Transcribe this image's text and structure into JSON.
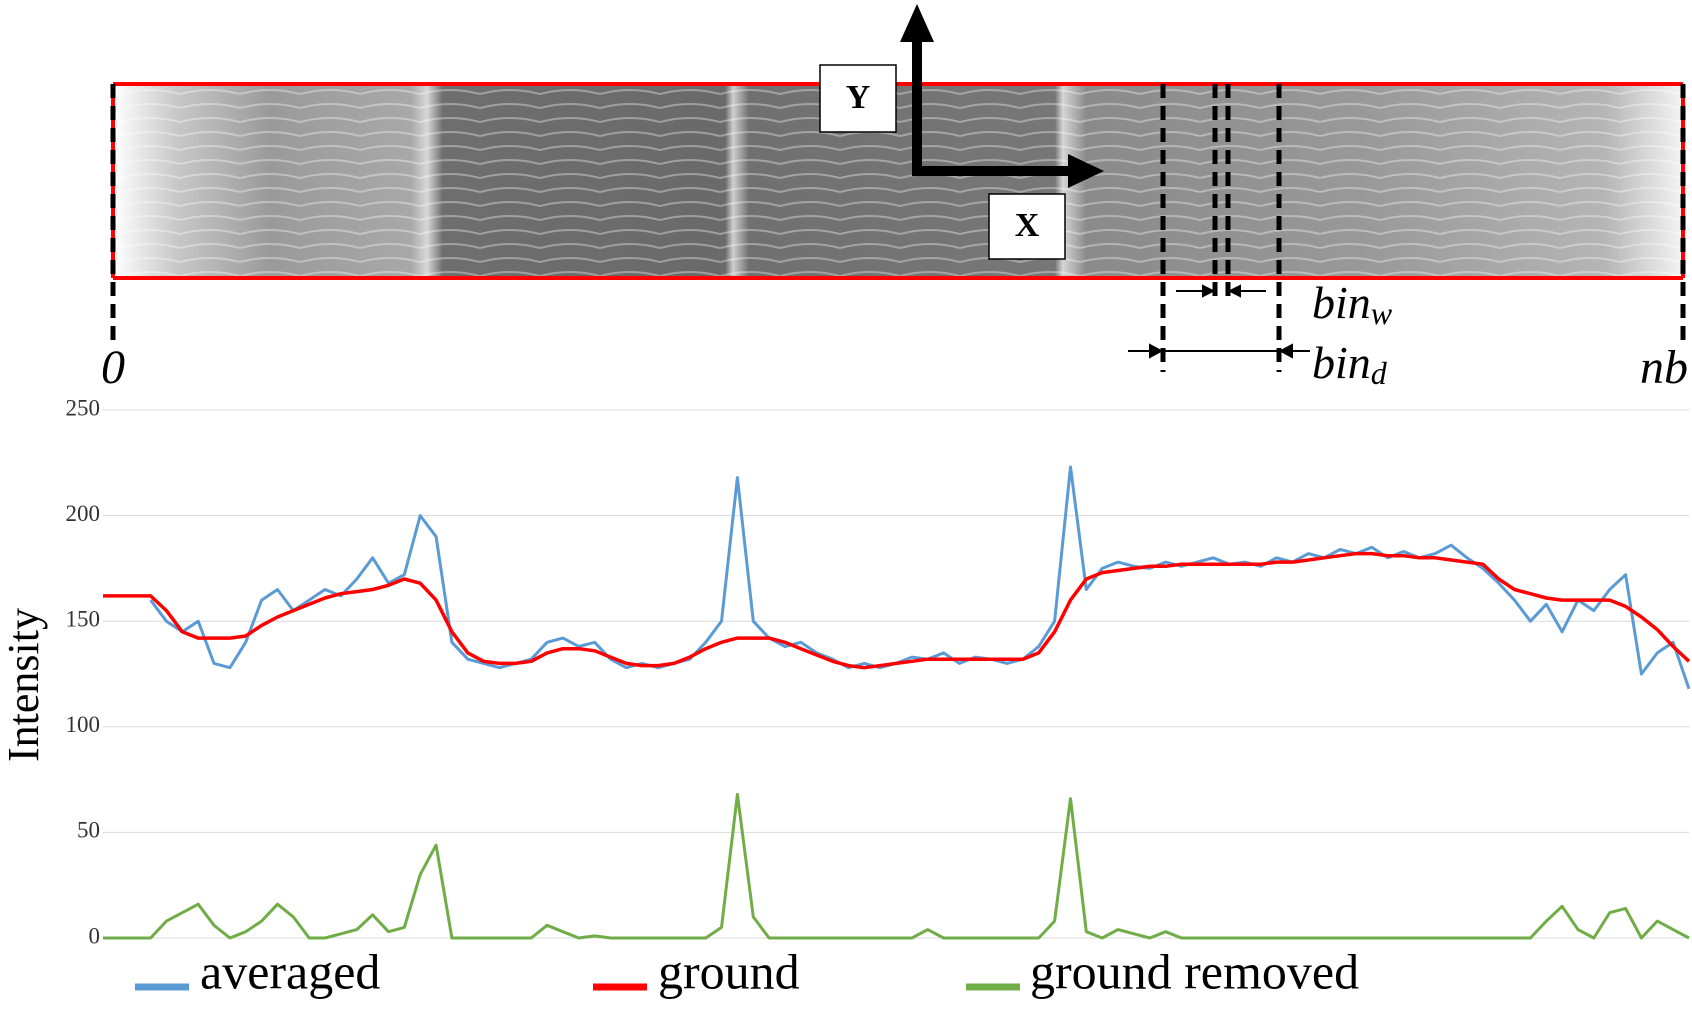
{
  "diagram": {
    "y_axis": "Y",
    "x_axis": "X",
    "start": "0",
    "end": "nb",
    "bin_w": {
      "base": "bin",
      "sub": "w"
    },
    "bin_d": {
      "base": "bin",
      "sub": "d"
    }
  },
  "chart_data": {
    "type": "line",
    "ylabel": "Intensity",
    "x": [
      0,
      1,
      2,
      3,
      4,
      5,
      6,
      7,
      8,
      9,
      10,
      11,
      12,
      13,
      14,
      15,
      16,
      17,
      18,
      19,
      20,
      21,
      22,
      23,
      24,
      25,
      26,
      27,
      28,
      29,
      30,
      31,
      32,
      33,
      34,
      35,
      36,
      37,
      38,
      39,
      40,
      41,
      42,
      43,
      44,
      45,
      46,
      47,
      48,
      49,
      50,
      51,
      52,
      53,
      54,
      55,
      56,
      57,
      58,
      59,
      60,
      61,
      62,
      63,
      64,
      65,
      66,
      67,
      68,
      69,
      70,
      71,
      72,
      73,
      74,
      75,
      76,
      77,
      78,
      79,
      80,
      81,
      82,
      83,
      84,
      85,
      86,
      87,
      88,
      89,
      90,
      91,
      92,
      93,
      94,
      95,
      96,
      97,
      98,
      99,
      100
    ],
    "xlim": [
      0,
      100
    ],
    "ylim": [
      0,
      250
    ],
    "yticks": [
      0,
      50,
      100,
      150,
      200,
      250
    ],
    "grid": true,
    "series": [
      {
        "name": "averaged",
        "color": "#5b9bd5",
        "values": [
          null,
          null,
          null,
          160,
          150,
          145,
          150,
          130,
          128,
          140,
          160,
          165,
          155,
          160,
          165,
          162,
          170,
          180,
          168,
          172,
          200,
          190,
          140,
          132,
          130,
          128,
          130,
          132,
          140,
          142,
          138,
          140,
          132,
          128,
          130,
          128,
          130,
          132,
          140,
          150,
          218,
          150,
          142,
          138,
          140,
          135,
          132,
          128,
          130,
          128,
          130,
          133,
          132,
          135,
          130,
          133,
          132,
          130,
          132,
          138,
          150,
          223,
          165,
          175,
          178,
          176,
          175,
          178,
          176,
          178,
          180,
          177,
          178,
          176,
          180,
          178,
          182,
          180,
          184,
          182,
          185,
          180,
          183,
          180,
          182,
          186,
          180,
          175,
          168,
          160,
          150,
          158,
          145,
          160,
          155,
          165,
          172,
          125,
          135,
          140,
          118
        ]
      },
      {
        "name": "ground",
        "color": "#ff0000",
        "values": [
          162,
          162,
          162,
          162,
          155,
          145,
          142,
          142,
          142,
          143,
          148,
          152,
          155,
          158,
          161,
          163,
          164,
          165,
          167,
          170,
          168,
          160,
          145,
          135,
          131,
          130,
          130,
          131,
          135,
          137,
          137,
          136,
          133,
          130,
          129,
          129,
          130,
          133,
          137,
          140,
          142,
          142,
          142,
          140,
          137,
          134,
          131,
          129,
          128,
          129,
          130,
          131,
          132,
          132,
          132,
          132,
          132,
          132,
          132,
          135,
          145,
          160,
          170,
          173,
          174,
          175,
          176,
          176,
          177,
          177,
          177,
          177,
          177,
          177,
          178,
          178,
          179,
          180,
          181,
          182,
          182,
          181,
          181,
          180,
          180,
          179,
          178,
          177,
          170,
          165,
          163,
          161,
          160,
          160,
          160,
          160,
          157,
          152,
          146,
          138,
          131
        ]
      },
      {
        "name": "ground removed",
        "color": "#70ad47",
        "values": [
          0,
          0,
          0,
          0,
          8,
          12,
          16,
          6,
          0,
          3,
          8,
          16,
          10,
          0,
          0,
          2,
          4,
          11,
          3,
          5,
          30,
          44,
          0,
          0,
          0,
          0,
          0,
          0,
          6,
          3,
          0,
          1,
          0,
          0,
          0,
          0,
          0,
          0,
          0,
          5,
          68,
          10,
          0,
          0,
          0,
          0,
          0,
          0,
          0,
          0,
          0,
          0,
          4,
          0,
          0,
          0,
          0,
          0,
          0,
          0,
          8,
          66,
          3,
          0,
          4,
          2,
          0,
          3,
          0,
          0,
          0,
          0,
          0,
          0,
          0,
          0,
          0,
          0,
          0,
          0,
          0,
          0,
          0,
          0,
          0,
          0,
          0,
          0,
          0,
          0,
          0,
          8,
          15,
          4,
          0,
          12,
          14,
          0,
          8,
          4,
          0
        ]
      }
    ]
  }
}
